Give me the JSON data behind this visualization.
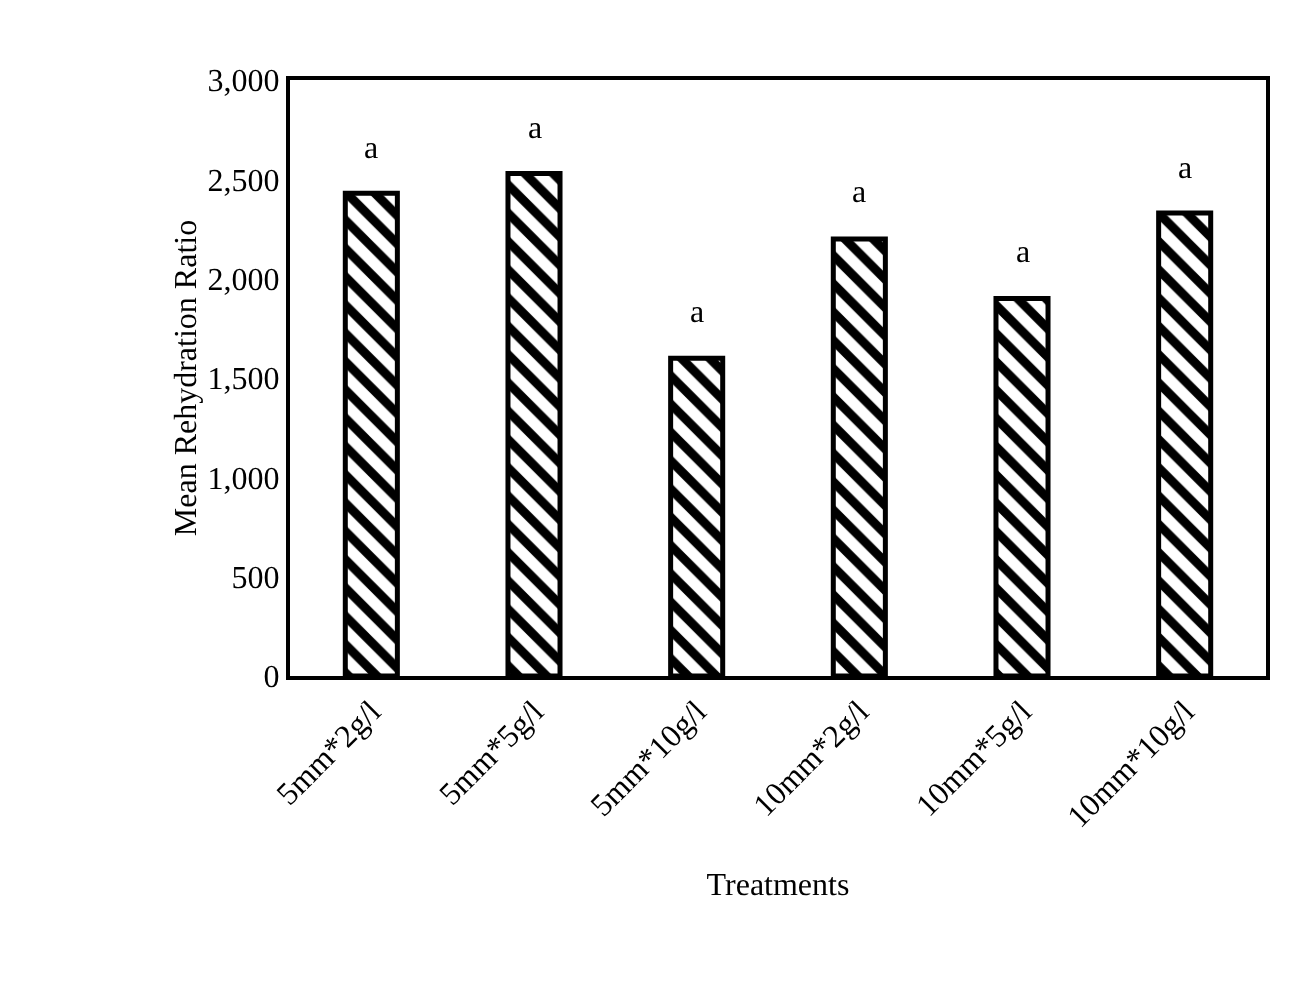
{
  "chart_data": {
    "type": "bar",
    "xlabel": "Treatments",
    "ylabel": "Mean Rehydration Ratio",
    "categories": [
      "5mm*2g/l",
      "5mm*5g/l",
      "5mm*10g/l",
      "10mm*2g/l",
      "10mm*5g/l",
      "10mm*10g/l"
    ],
    "values": [
      2430,
      2530,
      1600,
      2200,
      1900,
      2330
    ],
    "color": "#000000",
    "ylim": [
      0,
      3000
    ],
    "yticks": [
      0,
      500,
      {
        "value": 1000,
        "label": "1,000"
      },
      {
        "value": 1500,
        "label": "1,500"
      },
      {
        "value": 2000,
        "label": "2,000"
      },
      {
        "value": 2500,
        "label": "2,500"
      },
      {
        "value": 3000,
        "label": "3,000"
      }
    ],
    "annotations": [
      {
        "text": "a",
        "x": "5mm*2g/l",
        "y": 2430
      },
      {
        "text": "a",
        "x": "5mm*5g/l",
        "y": 2530
      },
      {
        "text": "a",
        "x": "5mm*10g/l",
        "y": 1600
      },
      {
        "text": "a",
        "x": "10mm*2g/l",
        "y": 2200
      },
      {
        "text": "a",
        "x": "10mm*5g/l",
        "y": 1900
      },
      {
        "text": "a",
        "x": "10mm*10g/l",
        "y": 2330
      }
    ],
    "grid": false
  }
}
